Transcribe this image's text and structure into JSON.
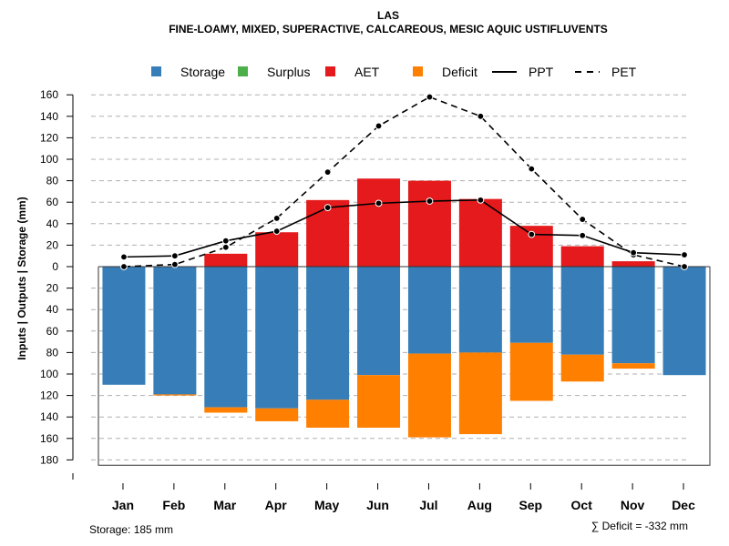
{
  "chart_data": {
    "type": "bar",
    "title": "LAS",
    "subtitle": "FINE-LOAMY, MIXED, SUPERACTIVE, CALCAREOUS, MESIC AQUIC USTIFLUVENTS",
    "ylabel": "Inputs | Outputs | Storage     (mm)",
    "categories": [
      "Jan",
      "Feb",
      "Mar",
      "Apr",
      "May",
      "Jun",
      "Jul",
      "Aug",
      "Sep",
      "Oct",
      "Nov",
      "Dec"
    ],
    "ylim": [
      -185,
      160
    ],
    "yticks": [
      160,
      140,
      120,
      100,
      80,
      60,
      40,
      20,
      0,
      -20,
      -40,
      -60,
      -80,
      -100,
      -120,
      -140,
      -160,
      -180
    ],
    "ytick_labels": [
      "160",
      "140",
      "120",
      "100",
      "80",
      "60",
      "40",
      "20",
      "0",
      "20",
      "40",
      "60",
      "80",
      "100",
      "120",
      "140",
      "160",
      "180"
    ],
    "grid": true,
    "legend": [
      {
        "label": "Storage",
        "kind": "box",
        "color": "#377EB8"
      },
      {
        "label": "Surplus",
        "kind": "box",
        "color": "#4DAF4A"
      },
      {
        "label": "AET",
        "kind": "box",
        "color": "#E41A1C"
      },
      {
        "label": "Deficit",
        "kind": "box",
        "color": "#FF7F00"
      },
      {
        "label": "PPT",
        "kind": "solid",
        "color": "#000000"
      },
      {
        "label": "PET",
        "kind": "dashed",
        "color": "#000000"
      }
    ],
    "series": [
      {
        "name": "Storage",
        "color": "#377EB8",
        "values": [
          110,
          119,
          131,
          132,
          124,
          101,
          81,
          80,
          71,
          82,
          90,
          101
        ]
      },
      {
        "name": "Deficit",
        "color": "#FF7F00",
        "values": [
          0,
          1,
          5,
          12,
          26,
          49,
          78,
          76,
          54,
          25,
          5,
          0
        ]
      },
      {
        "name": "AET",
        "color": "#E41A1C",
        "values": [
          0,
          0,
          12,
          32,
          62,
          82,
          80,
          63,
          38,
          19,
          5,
          0
        ]
      },
      {
        "name": "Surplus",
        "color": "#4DAF4A",
        "values": [
          0,
          0,
          0,
          0,
          0,
          0,
          0,
          0,
          0,
          0,
          0,
          0
        ]
      },
      {
        "name": "PPT",
        "color": "#000000",
        "values": [
          9,
          10,
          24,
          33,
          55,
          59,
          61,
          62,
          30,
          29,
          13,
          11
        ]
      },
      {
        "name": "PET",
        "color": "#000000",
        "values": [
          0,
          2,
          18,
          45,
          88,
          131,
          158,
          140,
          91,
          44,
          11,
          0
        ]
      }
    ],
    "footer_left": "Storage: 185 mm",
    "footer_right": "∑ Deficit = -332 mm"
  }
}
